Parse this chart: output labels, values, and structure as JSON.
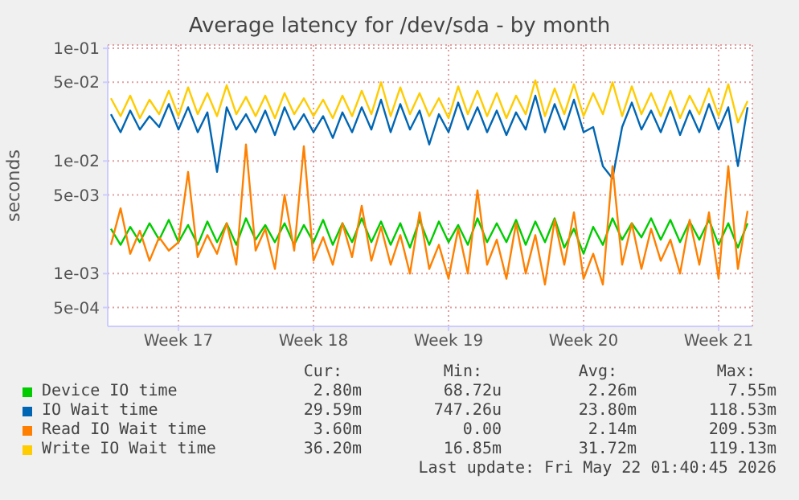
{
  "chart_data": {
    "type": "line",
    "title": "Average latency for /dev/sda - by month",
    "ylabel": "seconds",
    "log": true,
    "grid": true,
    "legend": "bottom",
    "marker": "none",
    "line_style": "solid",
    "x": [
      "2026-04-19T12:00",
      "2026-04-20T00:00",
      "2026-04-20T12:00",
      "2026-04-21T00:00",
      "2026-04-21T12:00",
      "2026-04-22T00:00",
      "2026-04-22T12:00",
      "2026-04-23T00:00",
      "2026-04-23T12:00",
      "2026-04-24T00:00",
      "2026-04-24T12:00",
      "2026-04-25T00:00",
      "2026-04-25T12:00",
      "2026-04-26T00:00",
      "2026-04-26T12:00",
      "2026-04-27T00:00",
      "2026-04-27T12:00",
      "2026-04-28T00:00",
      "2026-04-28T12:00",
      "2026-04-29T00:00",
      "2026-04-29T12:00",
      "2026-04-30T00:00",
      "2026-04-30T12:00",
      "2026-05-01T00:00",
      "2026-05-01T12:00",
      "2026-05-02T00:00",
      "2026-05-02T12:00",
      "2026-05-03T00:00",
      "2026-05-03T12:00",
      "2026-05-04T00:00",
      "2026-05-04T12:00",
      "2026-05-05T00:00",
      "2026-05-05T12:00",
      "2026-05-06T00:00",
      "2026-05-06T12:00",
      "2026-05-07T00:00",
      "2026-05-07T12:00",
      "2026-05-08T00:00",
      "2026-05-08T12:00",
      "2026-05-09T00:00",
      "2026-05-09T12:00",
      "2026-05-10T00:00",
      "2026-05-10T12:00",
      "2026-05-11T00:00",
      "2026-05-11T12:00",
      "2026-05-12T00:00",
      "2026-05-12T12:00",
      "2026-05-13T00:00",
      "2026-05-13T12:00",
      "2026-05-14T00:00",
      "2026-05-14T12:00",
      "2026-05-15T00:00",
      "2026-05-15T12:00",
      "2026-05-16T00:00",
      "2026-05-16T12:00",
      "2026-05-17T00:00",
      "2026-05-17T12:00",
      "2026-05-18T00:00",
      "2026-05-18T12:00",
      "2026-05-19T00:00",
      "2026-05-19T12:00",
      "2026-05-20T00:00",
      "2026-05-20T12:00",
      "2026-05-21T00:00",
      "2026-05-21T12:00",
      "2026-05-22T00:00",
      "2026-05-22T12:00"
    ],
    "xlim": [
      "2026-04-19T08:00",
      "2026-05-22T18:00"
    ],
    "xticks": [
      {
        "value": "2026-04-23",
        "label": "Week 17"
      },
      {
        "value": "2026-04-30",
        "label": "Week 18"
      },
      {
        "value": "2026-05-07",
        "label": "Week 19"
      },
      {
        "value": "2026-05-14",
        "label": "Week 20"
      },
      {
        "value": "2026-05-21",
        "label": "Week 21"
      }
    ],
    "ylim": [
      0.00034,
      0.107
    ],
    "yticks": [
      {
        "value": 0.1,
        "label": "1e-01"
      },
      {
        "value": 0.05,
        "label": "5e-02"
      },
      {
        "value": 0.01,
        "label": "1e-02"
      },
      {
        "value": 0.005,
        "label": "5e-03"
      },
      {
        "value": 0.001,
        "label": "1e-03"
      },
      {
        "value": 0.0005,
        "label": "5e-04"
      }
    ],
    "series": [
      {
        "name": "Device IO time",
        "color": "#00cc00",
        "values": [
          0.0025,
          0.0018,
          0.0026,
          0.0019,
          0.0028,
          0.002,
          0.003,
          0.0019,
          0.0027,
          0.0018,
          0.0029,
          0.0019,
          0.0028,
          0.0018,
          0.0031,
          0.002,
          0.0027,
          0.0019,
          0.0028,
          0.0018,
          0.0027,
          0.0019,
          0.003,
          0.0018,
          0.0028,
          0.0019,
          0.0031,
          0.0019,
          0.0029,
          0.0018,
          0.0028,
          0.0017,
          0.003,
          0.0018,
          0.0029,
          0.0019,
          0.0027,
          0.0018,
          0.0031,
          0.0019,
          0.0028,
          0.0019,
          0.003,
          0.0018,
          0.0029,
          0.0019,
          0.0031,
          0.0017,
          0.0025,
          0.0015,
          0.0026,
          0.0018,
          0.0031,
          0.002,
          0.0028,
          0.0021,
          0.0031,
          0.002,
          0.003,
          0.0019,
          0.0029,
          0.002,
          0.003,
          0.0018,
          0.0028,
          0.0017,
          0.0028
        ]
      },
      {
        "name": "IO Wait time",
        "color": "#0066b3",
        "values": [
          0.026,
          0.018,
          0.028,
          0.019,
          0.025,
          0.02,
          0.032,
          0.019,
          0.03,
          0.018,
          0.027,
          0.008,
          0.03,
          0.019,
          0.026,
          0.018,
          0.028,
          0.017,
          0.03,
          0.019,
          0.026,
          0.018,
          0.025,
          0.016,
          0.027,
          0.018,
          0.03,
          0.019,
          0.035,
          0.018,
          0.032,
          0.019,
          0.028,
          0.014,
          0.026,
          0.018,
          0.033,
          0.019,
          0.03,
          0.018,
          0.028,
          0.017,
          0.027,
          0.019,
          0.038,
          0.018,
          0.032,
          0.019,
          0.035,
          0.018,
          0.02,
          0.009,
          0.007,
          0.02,
          0.033,
          0.019,
          0.028,
          0.018,
          0.03,
          0.017,
          0.028,
          0.018,
          0.032,
          0.019,
          0.03,
          0.009,
          0.03
        ]
      },
      {
        "name": "Read IO Wait time",
        "color": "#ff8000",
        "values": [
          0.0018,
          0.0038,
          0.0015,
          0.0024,
          0.0013,
          0.0021,
          0.0016,
          0.0019,
          0.008,
          0.0014,
          0.0022,
          0.0015,
          0.0028,
          0.0012,
          0.014,
          0.0016,
          0.0025,
          0.0011,
          0.005,
          0.0016,
          0.0135,
          0.0013,
          0.0021,
          0.0012,
          0.0028,
          0.0014,
          0.004,
          0.0013,
          0.0026,
          0.0012,
          0.0022,
          0.001,
          0.0035,
          0.0011,
          0.0018,
          0.0009,
          0.0025,
          0.001,
          0.0055,
          0.0012,
          0.002,
          0.0009,
          0.0028,
          0.001,
          0.0022,
          0.0008,
          0.003,
          0.0012,
          0.0035,
          0.0009,
          0.0015,
          0.0008,
          0.009,
          0.0012,
          0.0028,
          0.0011,
          0.0025,
          0.0013,
          0.002,
          0.001,
          0.003,
          0.0012,
          0.0035,
          0.0009,
          0.009,
          0.0011,
          0.0036
        ]
      },
      {
        "name": "Write IO Wait time",
        "color": "#ffcc00",
        "values": [
          0.036,
          0.025,
          0.038,
          0.024,
          0.035,
          0.026,
          0.042,
          0.025,
          0.045,
          0.026,
          0.04,
          0.025,
          0.047,
          0.026,
          0.037,
          0.025,
          0.038,
          0.024,
          0.04,
          0.026,
          0.036,
          0.025,
          0.035,
          0.024,
          0.038,
          0.025,
          0.042,
          0.026,
          0.05,
          0.025,
          0.045,
          0.026,
          0.04,
          0.025,
          0.036,
          0.024,
          0.046,
          0.026,
          0.042,
          0.025,
          0.04,
          0.024,
          0.038,
          0.026,
          0.052,
          0.025,
          0.044,
          0.026,
          0.048,
          0.025,
          0.04,
          0.026,
          0.05,
          0.025,
          0.046,
          0.026,
          0.04,
          0.025,
          0.042,
          0.024,
          0.038,
          0.026,
          0.044,
          0.025,
          0.048,
          0.022,
          0.034
        ]
      }
    ],
    "annotations": [
      "Cur:",
      "Min:",
      "Avg:",
      "Max:",
      "2.80m",
      "68.72u",
      "2.26m",
      "7.55m",
      "29.59m",
      "747.26u",
      "23.80m",
      "118.53m",
      "3.60m",
      "0.00",
      "2.14m",
      "209.53m",
      "36.20m",
      "16.85m",
      "31.72m",
      "119.13m",
      "Last update: Fri May 22 01:40:45 2026"
    ]
  }
}
